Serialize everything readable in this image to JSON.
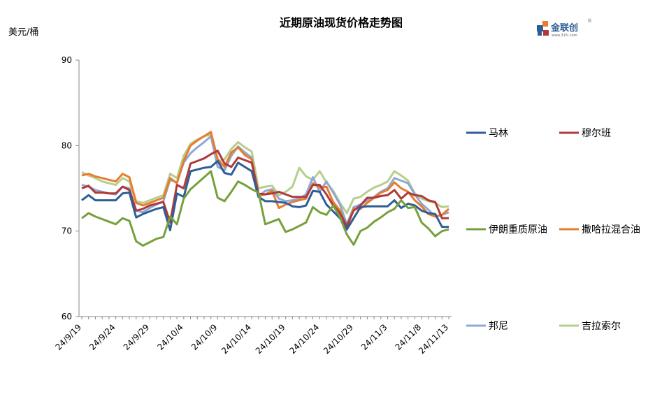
{
  "chart_data": {
    "type": "line",
    "title": "近期原油现货价格走势图",
    "ylabel": "美元/桶",
    "ylim": [
      60,
      90
    ],
    "yticks": [
      60,
      70,
      80,
      90
    ],
    "grid": false,
    "legend_position": "right",
    "x_tick_labels": [
      "24/9/19",
      "24/9/24",
      "24/9/29",
      "24/10/4",
      "24/10/9",
      "24/10/14",
      "24/10/19",
      "24/10/24",
      "24/10/29",
      "24/11/3",
      "24/11/8",
      "24/11/13"
    ],
    "series": [
      {
        "name": "马林",
        "color": "#2E5E96",
        "values": [
          73.6,
          74.2,
          73.6,
          73.6,
          73.6,
          73.6,
          74.4,
          74.5,
          71.6,
          72.0,
          72.3,
          72.6,
          72.8,
          70.1,
          74.4,
          74.0,
          77.0,
          77.2,
          77.4,
          77.5,
          78.2,
          76.8,
          76.6,
          78.0,
          77.5,
          77.0,
          74.0,
          73.5,
          73.5,
          73.4,
          73.3,
          72.9,
          72.8,
          73.0,
          74.7,
          74.6,
          73.1,
          72.3,
          71.5,
          70.2,
          71.5,
          72.8,
          72.9,
          72.9,
          72.9,
          72.9,
          73.6,
          72.7,
          73.2,
          73.0,
          72.4,
          72.1,
          72.0,
          70.5,
          70.5
        ]
      },
      {
        "name": "穆尔班",
        "color": "#B03A3A",
        "values": [
          75.0,
          75.3,
          74.5,
          74.5,
          74.4,
          74.4,
          75.2,
          74.8,
          72.4,
          72.6,
          73.0,
          73.2,
          73.4,
          71.0,
          75.4,
          75.0,
          77.9,
          78.2,
          78.5,
          79.0,
          79.4,
          77.9,
          77.5,
          78.6,
          78.3,
          78.0,
          74.4,
          74.3,
          74.4,
          74.6,
          74.3,
          74.0,
          74.0,
          74.0,
          75.4,
          75.4,
          74.3,
          73.0,
          72.1,
          70.6,
          72.4,
          73.0,
          73.9,
          73.9,
          74.1,
          74.2,
          74.8,
          73.8,
          74.5,
          74.2,
          74.1,
          73.6,
          73.4,
          71.5,
          71.5
        ]
      },
      {
        "name": "伊朗重质原油",
        "color": "#77A03C",
        "values": [
          71.5,
          72.1,
          71.7,
          71.4,
          71.1,
          70.8,
          71.5,
          71.2,
          68.8,
          68.3,
          68.7,
          69.1,
          69.3,
          71.7,
          70.8,
          73.8,
          74.9,
          75.6,
          76.3,
          77.0,
          73.9,
          73.5,
          74.6,
          75.8,
          75.4,
          74.9,
          74.5,
          70.8,
          71.1,
          71.4,
          69.9,
          70.2,
          70.6,
          71.0,
          72.8,
          72.2,
          71.9,
          73.0,
          71.6,
          69.6,
          68.4,
          70.0,
          70.4,
          71.1,
          71.6,
          72.2,
          72.6,
          73.6,
          72.7,
          72.8,
          71.0,
          70.3,
          69.4,
          70.0,
          70.2
        ]
      },
      {
        "name": "撒哈拉混合油",
        "color": "#E87C2E",
        "values": [
          76.5,
          76.7,
          76.4,
          76.2,
          76.0,
          75.8,
          76.7,
          76.3,
          73.3,
          73.0,
          73.3,
          73.6,
          73.9,
          76.2,
          75.6,
          78.2,
          80.0,
          80.6,
          81.1,
          81.6,
          78.4,
          77.5,
          79.2,
          79.8,
          78.9,
          78.4,
          74.1,
          74.3,
          74.7,
          72.7,
          73.1,
          73.4,
          73.6,
          73.8,
          75.6,
          75.1,
          75.2,
          73.4,
          72.4,
          70.3,
          72.6,
          72.6,
          73.3,
          73.9,
          74.5,
          74.8,
          75.7,
          75.0,
          74.6,
          73.6,
          72.9,
          72.0,
          71.7,
          71.9,
          72.6
        ]
      },
      {
        "name": "邦尼",
        "color": "#8FA8D4",
        "values": [
          75.4,
          75.2,
          74.8,
          74.6,
          74.4,
          74.3,
          75.2,
          75.0,
          72.4,
          72.2,
          72.7,
          73.1,
          73.5,
          76.0,
          75.7,
          78.0,
          79.1,
          79.8,
          80.4,
          81.1,
          77.5,
          77.1,
          78.8,
          79.9,
          79.2,
          78.6,
          74.1,
          74.7,
          74.9,
          73.8,
          73.5,
          73.6,
          73.8,
          74.3,
          76.3,
          74.6,
          75.8,
          74.5,
          73.1,
          70.8,
          72.8,
          73.1,
          73.6,
          74.0,
          74.6,
          75.0,
          76.2,
          75.9,
          75.6,
          74.3,
          73.2,
          72.5,
          71.7,
          71.9,
          72.2
        ]
      },
      {
        "name": "吉拉索尔",
        "color": "#B5CF8B",
        "values": [
          76.9,
          76.5,
          76.2,
          75.8,
          75.6,
          75.4,
          76.2,
          75.8,
          73.5,
          73.3,
          73.6,
          73.9,
          74.2,
          76.7,
          76.2,
          78.8,
          80.2,
          80.7,
          81.1,
          81.3,
          78.2,
          78.4,
          79.6,
          80.4,
          79.8,
          79.3,
          75.0,
          75.2,
          75.3,
          74.2,
          74.6,
          75.2,
          77.4,
          76.4,
          76.0,
          77.0,
          75.7,
          74.7,
          73.3,
          72.1,
          73.8,
          74.0,
          74.6,
          75.1,
          75.4,
          75.8,
          77.0,
          76.5,
          75.9,
          74.4,
          73.8,
          73.5,
          73.3,
          72.8,
          72.9
        ]
      }
    ]
  },
  "unit_label": "美元/桶",
  "logo": {
    "name": "金联创",
    "sub": "www.315i.com",
    "mark": "®"
  }
}
